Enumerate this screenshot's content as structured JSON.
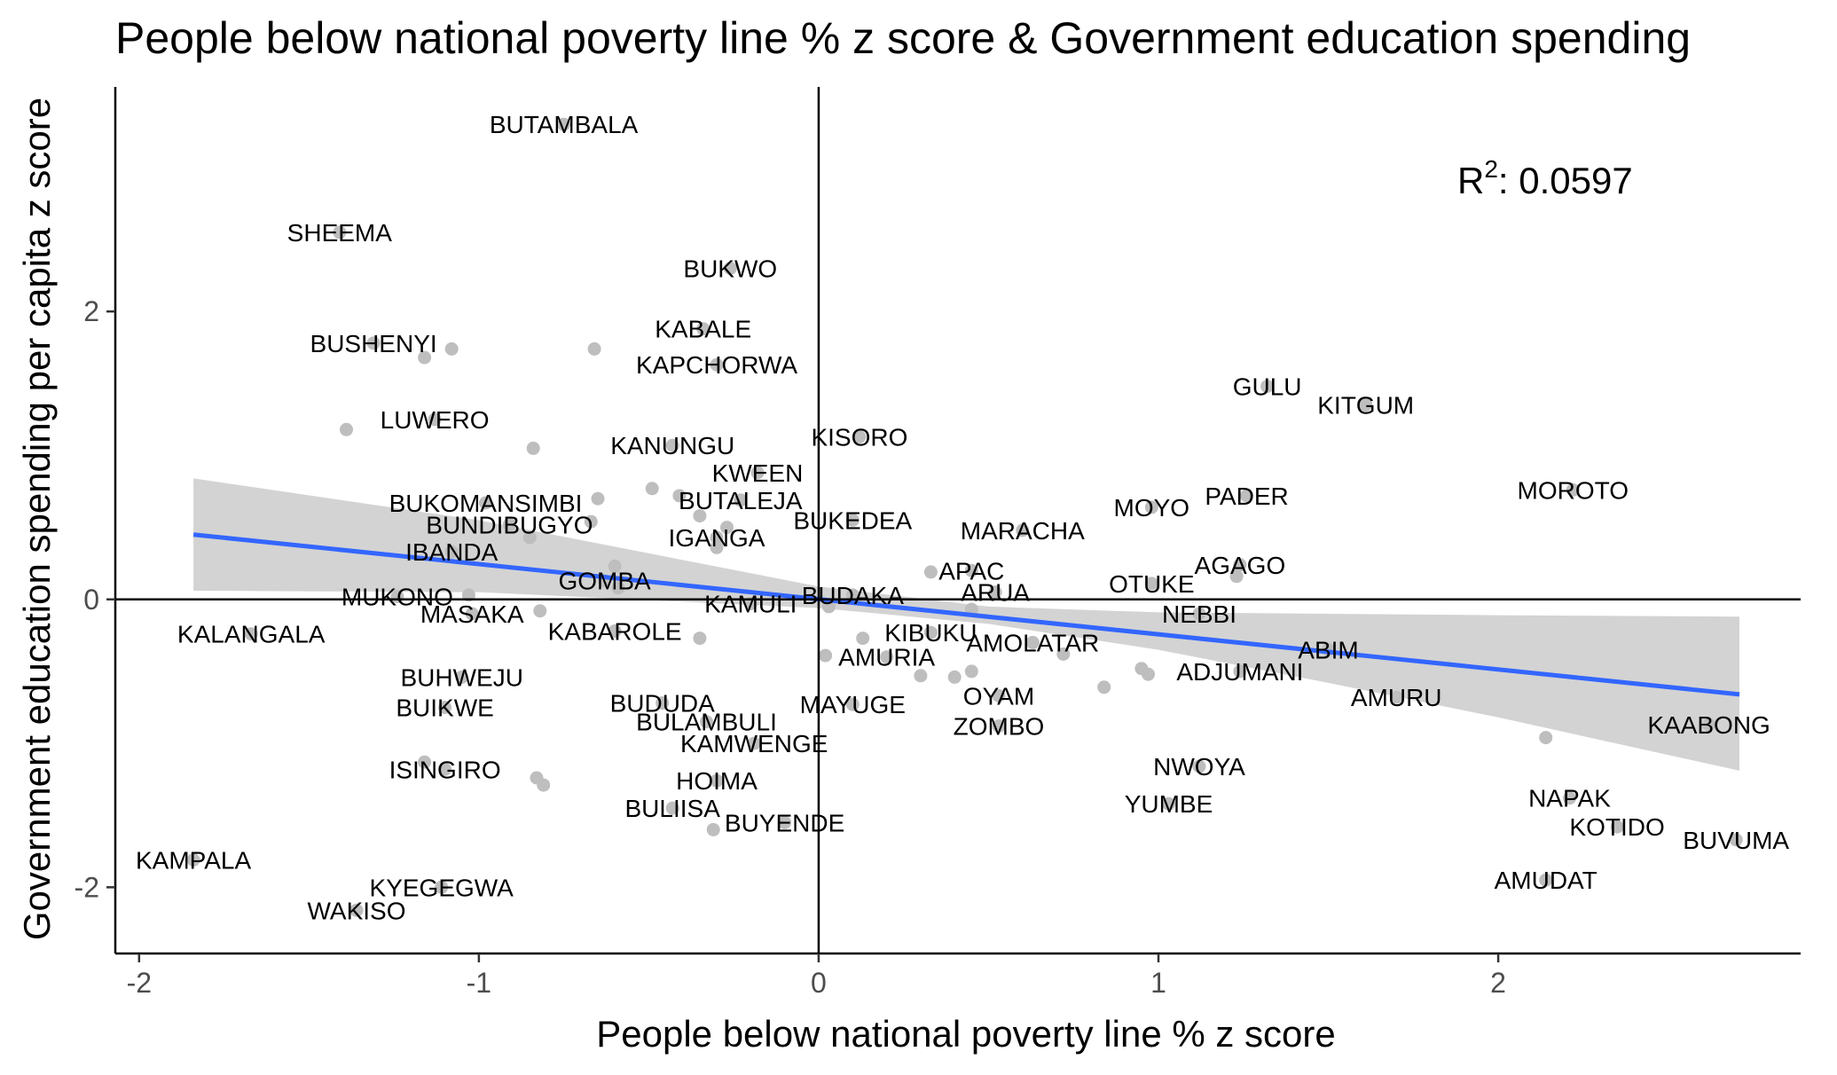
{
  "chart_data": {
    "type": "scatter",
    "title": "People below national poverty line % z score & Government education spending",
    "xlabel": "People below national poverty line % z score",
    "ylabel": "Government education spending per capita z score",
    "xlim": [
      -2.07,
      2.89
    ],
    "ylim": [
      -2.46,
      3.56
    ],
    "xticks": [
      -2,
      -1,
      0,
      1,
      2
    ],
    "yticks": [
      -2,
      0,
      2
    ],
    "xtick_labels": [
      "-2",
      "-1",
      "0",
      "1",
      "2"
    ],
    "ytick_labels": [
      "-2",
      "0",
      "2"
    ],
    "grid": false,
    "reference_lines": {
      "x": 0,
      "y": 0
    },
    "annotation": {
      "label": "R",
      "superscript": "2",
      "value": ": 0.0597"
    },
    "fit_line": {
      "x": [
        -1.84,
        2.71
      ],
      "y": [
        0.45,
        -0.66
      ]
    },
    "confidence_band": {
      "x": [
        -1.84,
        -1.0,
        0.0,
        0.5,
        1.0,
        1.5,
        2.0,
        2.71
      ],
      "upper": [
        0.84,
        0.55,
        0.09,
        -0.05,
        -0.09,
        -0.1,
        -0.11,
        -0.12
      ],
      "lower": [
        0.06,
        0.05,
        -0.06,
        -0.17,
        -0.35,
        -0.58,
        -0.82,
        -1.19
      ]
    },
    "points": [
      {
        "x": -1.84,
        "y": -1.81,
        "label": "KAMPALA"
      },
      {
        "x": -1.67,
        "y": -0.24,
        "label": "KALANGALA"
      },
      {
        "x": -1.41,
        "y": 2.55,
        "label": "SHEEMA"
      },
      {
        "x": -1.39,
        "y": 1.18,
        "label": "",
        "labeled": false
      },
      {
        "x": -1.36,
        "y": -2.16,
        "label": "WAKISO"
      },
      {
        "x": -1.31,
        "y": 1.78,
        "label": "BUSHENYI"
      },
      {
        "x": -1.24,
        "y": 0.02,
        "label": "MUKONO"
      },
      {
        "x": -1.16,
        "y": 1.68,
        "label": "",
        "labeled": false
      },
      {
        "x": -1.16,
        "y": -1.13,
        "label": "",
        "labeled": false
      },
      {
        "x": -1.13,
        "y": 1.25,
        "label": "LUWERO"
      },
      {
        "x": -1.11,
        "y": -2.0,
        "label": "KYEGEGWA"
      },
      {
        "x": -1.1,
        "y": -1.18,
        "label": "ISINGIRO"
      },
      {
        "x": -1.1,
        "y": -0.75,
        "label": "BUIKWE"
      },
      {
        "x": -1.08,
        "y": 1.74,
        "label": "",
        "labeled": false
      },
      {
        "x": -1.05,
        "y": -0.54,
        "label": "BUHWEJU"
      },
      {
        "x": -1.03,
        "y": 0.03,
        "label": "",
        "labeled": false
      },
      {
        "x": -1.02,
        "y": -0.1,
        "label": "MASAKA"
      },
      {
        "x": -1.08,
        "y": 0.33,
        "label": "IBANDA"
      },
      {
        "x": -0.98,
        "y": 0.67,
        "label": "BUKOMANSIMBI"
      },
      {
        "x": -0.91,
        "y": 0.52,
        "label": "BUNDIBUGYO"
      },
      {
        "x": -0.85,
        "y": 0.43,
        "label": "",
        "labeled": false
      },
      {
        "x": -0.84,
        "y": 1.05,
        "label": "",
        "labeled": false
      },
      {
        "x": -0.83,
        "y": -1.24,
        "label": "",
        "labeled": false
      },
      {
        "x": -0.82,
        "y": -0.08,
        "label": "",
        "labeled": false
      },
      {
        "x": -0.81,
        "y": -1.29,
        "label": "",
        "labeled": false
      },
      {
        "x": -0.75,
        "y": 3.3,
        "label": "BUTAMBALA"
      },
      {
        "x": -0.66,
        "y": 1.74,
        "label": "",
        "labeled": false
      },
      {
        "x": -0.67,
        "y": 0.54,
        "label": "",
        "labeled": false
      },
      {
        "x": -0.65,
        "y": 0.7,
        "label": "",
        "labeled": false
      },
      {
        "x": -0.63,
        "y": 0.13,
        "label": "GOMBA"
      },
      {
        "x": -0.6,
        "y": 0.23,
        "label": "",
        "labeled": false
      },
      {
        "x": -0.59,
        "y": 0.08,
        "label": "",
        "labeled": false
      },
      {
        "x": -0.6,
        "y": -0.22,
        "label": "KABAROLE"
      },
      {
        "x": -0.49,
        "y": 0.77,
        "label": "",
        "labeled": false
      },
      {
        "x": -0.46,
        "y": -0.72,
        "label": "BUDUDA"
      },
      {
        "x": -0.43,
        "y": 1.07,
        "label": "KANUNGU"
      },
      {
        "x": -0.43,
        "y": -1.45,
        "label": "BULIISA"
      },
      {
        "x": -0.41,
        "y": 0.72,
        "label": "",
        "labeled": false
      },
      {
        "x": -0.35,
        "y": 0.58,
        "label": "",
        "labeled": false
      },
      {
        "x": -0.35,
        "y": -0.27,
        "label": "",
        "labeled": false
      },
      {
        "x": -0.34,
        "y": 1.88,
        "label": "KABALE"
      },
      {
        "x": -0.33,
        "y": -0.85,
        "label": "BULAMBULI"
      },
      {
        "x": -0.31,
        "y": -1.6,
        "label": "",
        "labeled": false
      },
      {
        "x": -0.3,
        "y": -1.26,
        "label": "HOIMA"
      },
      {
        "x": -0.3,
        "y": 1.63,
        "label": "KAPCHORWA"
      },
      {
        "x": -0.26,
        "y": 2.3,
        "label": "BUKWO"
      },
      {
        "x": -0.23,
        "y": 0.69,
        "label": "BUTALEJA"
      },
      {
        "x": -0.3,
        "y": 0.43,
        "label": "IGANGA"
      },
      {
        "x": -0.27,
        "y": 0.5,
        "label": "",
        "labeled": false
      },
      {
        "x": -0.3,
        "y": 0.36,
        "label": "",
        "labeled": false
      },
      {
        "x": -0.2,
        "y": -0.03,
        "label": "KAMULI"
      },
      {
        "x": -0.19,
        "y": -1.0,
        "label": "KAMWENGE"
      },
      {
        "x": -0.18,
        "y": 0.88,
        "label": "KWEEN"
      },
      {
        "x": -0.1,
        "y": -1.55,
        "label": "BUYENDE"
      },
      {
        "x": 0.02,
        "y": -0.39,
        "label": "",
        "labeled": false
      },
      {
        "x": 0.03,
        "y": -0.05,
        "label": "",
        "labeled": false
      },
      {
        "x": 0.1,
        "y": 0.03,
        "label": "BUDAKA"
      },
      {
        "x": 0.1,
        "y": -0.73,
        "label": "MAYUGE"
      },
      {
        "x": 0.12,
        "y": 1.13,
        "label": "KISORO"
      },
      {
        "x": 0.13,
        "y": -0.27,
        "label": "",
        "labeled": false
      },
      {
        "x": 0.1,
        "y": 0.55,
        "label": "BUKEDEA"
      },
      {
        "x": 0.2,
        "y": -0.4,
        "label": "AMURIA"
      },
      {
        "x": 0.3,
        "y": -0.53,
        "label": "",
        "labeled": false
      },
      {
        "x": 0.33,
        "y": 0.19,
        "label": "",
        "labeled": false
      },
      {
        "x": 0.33,
        "y": -0.23,
        "label": "KIBUKU"
      },
      {
        "x": 0.4,
        "y": -0.54,
        "label": "",
        "labeled": false
      },
      {
        "x": 0.45,
        "y": -0.5,
        "label": "",
        "labeled": false
      },
      {
        "x": 0.45,
        "y": 0.2,
        "label": "APAC"
      },
      {
        "x": 0.45,
        "y": -0.07,
        "label": "",
        "labeled": false
      },
      {
        "x": 0.52,
        "y": 0.05,
        "label": "ARUA"
      },
      {
        "x": 0.53,
        "y": -0.67,
        "label": "OYAM"
      },
      {
        "x": 0.53,
        "y": -0.88,
        "label": "ZOMBO"
      },
      {
        "x": 0.6,
        "y": 0.48,
        "label": "MARACHA"
      },
      {
        "x": 0.63,
        "y": -0.3,
        "label": "AMOLATAR"
      },
      {
        "x": 0.72,
        "y": -0.38,
        "label": "",
        "labeled": false
      },
      {
        "x": 0.84,
        "y": -0.61,
        "label": "",
        "labeled": false
      },
      {
        "x": 0.95,
        "y": -0.48,
        "label": "",
        "labeled": false
      },
      {
        "x": 0.97,
        "y": -0.52,
        "label": "",
        "labeled": false
      },
      {
        "x": 0.98,
        "y": 0.64,
        "label": "MOYO"
      },
      {
        "x": 0.98,
        "y": 0.11,
        "label": "OTUKE"
      },
      {
        "x": 1.03,
        "y": -1.42,
        "label": "YUMBE"
      },
      {
        "x": 1.12,
        "y": -1.16,
        "label": "NWOYA"
      },
      {
        "x": 1.12,
        "y": -0.1,
        "label": "NEBBI"
      },
      {
        "x": 1.26,
        "y": 0.72,
        "label": "PADER"
      },
      {
        "x": 1.24,
        "y": 0.24,
        "label": "AGAGO"
      },
      {
        "x": 1.23,
        "y": 0.16,
        "label": "",
        "labeled": false
      },
      {
        "x": 1.24,
        "y": -0.5,
        "label": "ADJUMANI"
      },
      {
        "x": 1.32,
        "y": 1.48,
        "label": "GULU"
      },
      {
        "x": 1.5,
        "y": -0.35,
        "label": "ABIM"
      },
      {
        "x": 1.61,
        "y": 1.35,
        "label": "KITGUM"
      },
      {
        "x": 1.7,
        "y": -0.68,
        "label": "AMURU"
      },
      {
        "x": 2.14,
        "y": -0.96,
        "label": "",
        "labeled": false
      },
      {
        "x": 2.14,
        "y": -1.95,
        "label": "AMUDAT"
      },
      {
        "x": 2.21,
        "y": -1.38,
        "label": "NAPAK"
      },
      {
        "x": 2.22,
        "y": 0.76,
        "label": "MOROTO"
      },
      {
        "x": 2.35,
        "y": -1.58,
        "label": "KOTIDO"
      },
      {
        "x": 2.62,
        "y": -0.87,
        "label": "KAABONG"
      },
      {
        "x": 2.7,
        "y": -1.67,
        "label": "BUVUMA"
      }
    ]
  },
  "colors": {
    "point": "#bebebe",
    "fit_line": "#3366ff",
    "band": "#d3d3d3",
    "axis": "#000000"
  }
}
